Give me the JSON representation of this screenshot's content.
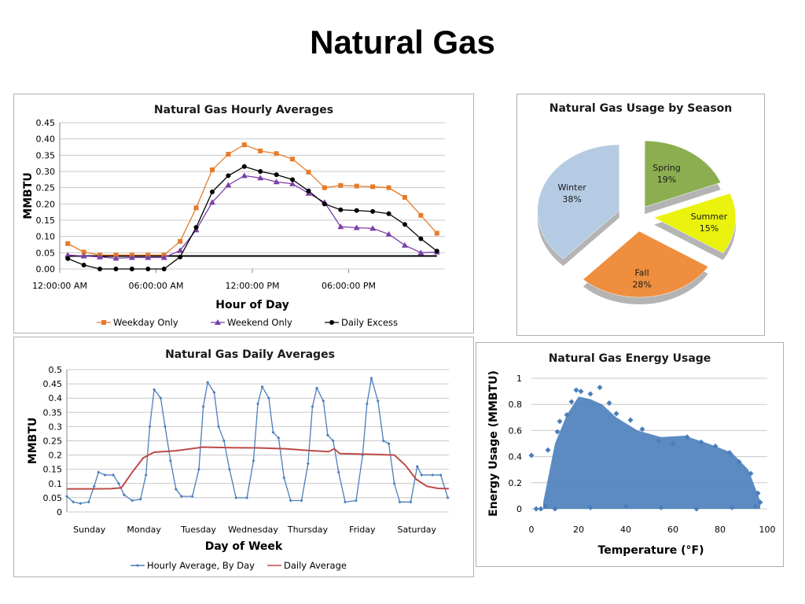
{
  "page": {
    "title": "Natural Gas"
  },
  "colors": {
    "weekday": "#E57C2A",
    "weekend": "#7B3FA8",
    "excess": "#000000",
    "hourly_by_day": "#4A7EBB",
    "daily_avg": "#BE4B48",
    "scatter": "#4A7EBB",
    "grid": "#c8c8c8"
  },
  "chart_data": [
    {
      "type": "line",
      "title": "Natural Gas Hourly Averages",
      "xlabel": "Hour of Day",
      "ylabel": "MMBTU",
      "ylim": [
        0,
        0.45
      ],
      "yticks": [
        "0.00",
        "0.05",
        "0.10",
        "0.15",
        "0.20",
        "0.25",
        "0.30",
        "0.35",
        "0.40",
        "0.45"
      ],
      "xticks": [
        "12:00:00 AM",
        "06:00:00 AM",
        "12:00:00 PM",
        "06:00:00 PM"
      ],
      "x_hours": [
        0,
        1,
        2,
        3,
        4,
        5,
        6,
        7,
        8,
        9,
        10,
        11,
        12,
        13,
        14,
        15,
        16,
        17,
        18,
        19,
        20,
        21,
        22,
        23
      ],
      "reference_line": 0.04,
      "legend_position": "bottom",
      "grid": true,
      "series": [
        {
          "name": "Weekday Only",
          "color_key": "weekday",
          "marker": "square",
          "values": [
            0.078,
            0.052,
            0.043,
            0.043,
            0.043,
            0.043,
            0.043,
            0.085,
            0.188,
            0.305,
            0.353,
            0.382,
            0.363,
            0.355,
            0.338,
            0.298,
            0.25,
            0.257,
            0.255,
            0.253,
            0.25,
            0.22,
            0.165,
            0.11
          ]
        },
        {
          "name": "Weekend Only",
          "color_key": "weekend",
          "marker": "triangle",
          "values": [
            0.043,
            0.04,
            0.037,
            0.033,
            0.035,
            0.035,
            0.035,
            0.057,
            0.12,
            0.205,
            0.258,
            0.287,
            0.28,
            0.268,
            0.262,
            0.233,
            0.205,
            0.13,
            0.127,
            0.125,
            0.107,
            0.073,
            0.05,
            0.052
          ]
        },
        {
          "name": "Daily Excess",
          "color_key": "excess",
          "marker": "circle",
          "values": [
            0.032,
            0.012,
            0.0,
            0.0,
            0.0,
            0.0,
            0.0,
            0.037,
            0.128,
            0.237,
            0.287,
            0.315,
            0.3,
            0.29,
            0.275,
            0.24,
            0.2,
            0.182,
            0.18,
            0.177,
            0.17,
            0.137,
            0.093,
            0.055
          ]
        }
      ]
    },
    {
      "type": "pie",
      "title": "Natural Gas Usage by Season",
      "slices": [
        {
          "label": "Spring",
          "value": 19,
          "pct_label": "19%",
          "color": "#8CAE50"
        },
        {
          "label": "Summer",
          "value": 15,
          "pct_label": "15%",
          "color": "#EAF20D"
        },
        {
          "label": "Fall",
          "value": 28,
          "pct_label": "28%",
          "color": "#EE8E3E"
        },
        {
          "label": "Winter",
          "value": 38,
          "pct_label": "38%",
          "color": "#B5CBE3"
        }
      ]
    },
    {
      "type": "line",
      "title": "Natural Gas Daily Averages",
      "xlabel": "Day of Week",
      "ylabel": "MMBTU",
      "ylim": [
        0,
        0.5
      ],
      "yticks": [
        "0",
        "0.05",
        "0.1",
        "0.15",
        "0.2",
        "0.25",
        "0.3",
        "0.35",
        "0.4",
        "0.45",
        "0.5"
      ],
      "categories": [
        "Sunday",
        "Monday",
        "Tuesday",
        "Wednesday",
        "Thursday",
        "Friday",
        "Saturday"
      ],
      "x_unit": "days since Sunday 12:00 AM",
      "legend_position": "bottom",
      "grid": true,
      "series": [
        {
          "name": "Hourly Average, By Day",
          "color_key": "hourly_by_day",
          "marker": "small-diamond",
          "points": [
            [
              0,
              0.055
            ],
            [
              0.12,
              0.035
            ],
            [
              0.25,
              0.03
            ],
            [
              0.4,
              0.035
            ],
            [
              0.5,
              0.09
            ],
            [
              0.58,
              0.14
            ],
            [
              0.7,
              0.13
            ],
            [
              0.85,
              0.13
            ],
            [
              0.95,
              0.1
            ],
            [
              1.05,
              0.06
            ],
            [
              1.2,
              0.04
            ],
            [
              1.35,
              0.045
            ],
            [
              1.45,
              0.13
            ],
            [
              1.52,
              0.3
            ],
            [
              1.6,
              0.43
            ],
            [
              1.72,
              0.4
            ],
            [
              1.8,
              0.3
            ],
            [
              1.9,
              0.18
            ],
            [
              2.0,
              0.08
            ],
            [
              2.1,
              0.055
            ],
            [
              2.3,
              0.055
            ],
            [
              2.42,
              0.15
            ],
            [
              2.5,
              0.37
            ],
            [
              2.58,
              0.455
            ],
            [
              2.7,
              0.42
            ],
            [
              2.78,
              0.3
            ],
            [
              2.88,
              0.25
            ],
            [
              2.98,
              0.15
            ],
            [
              3.1,
              0.05
            ],
            [
              3.3,
              0.05
            ],
            [
              3.42,
              0.18
            ],
            [
              3.5,
              0.38
            ],
            [
              3.58,
              0.44
            ],
            [
              3.7,
              0.4
            ],
            [
              3.78,
              0.28
            ],
            [
              3.88,
              0.26
            ],
            [
              3.98,
              0.12
            ],
            [
              4.1,
              0.04
            ],
            [
              4.3,
              0.04
            ],
            [
              4.42,
              0.17
            ],
            [
              4.5,
              0.37
            ],
            [
              4.58,
              0.435
            ],
            [
              4.7,
              0.39
            ],
            [
              4.78,
              0.27
            ],
            [
              4.88,
              0.25
            ],
            [
              4.98,
              0.14
            ],
            [
              5.1,
              0.035
            ],
            [
              5.3,
              0.04
            ],
            [
              5.42,
              0.2
            ],
            [
              5.5,
              0.38
            ],
            [
              5.58,
              0.47
            ],
            [
              5.7,
              0.39
            ],
            [
              5.8,
              0.25
            ],
            [
              5.9,
              0.24
            ],
            [
              6.0,
              0.1
            ],
            [
              6.1,
              0.035
            ],
            [
              6.3,
              0.035
            ],
            [
              6.42,
              0.16
            ],
            [
              6.5,
              0.13
            ],
            [
              6.7,
              0.13
            ],
            [
              6.85,
              0.13
            ],
            [
              6.98,
              0.05
            ]
          ]
        },
        {
          "name": "Daily Average",
          "color_key": "daily_avg",
          "marker": "none",
          "points": [
            [
              0,
              0.081
            ],
            [
              0.5,
              0.081
            ],
            [
              0.8,
              0.082
            ],
            [
              1.0,
              0.085
            ],
            [
              1.2,
              0.14
            ],
            [
              1.4,
              0.19
            ],
            [
              1.6,
              0.21
            ],
            [
              2.0,
              0.215
            ],
            [
              2.5,
              0.228
            ],
            [
              3.0,
              0.226
            ],
            [
              3.5,
              0.225
            ],
            [
              4.0,
              0.222
            ],
            [
              4.5,
              0.215
            ],
            [
              4.8,
              0.212
            ],
            [
              4.9,
              0.222
            ],
            [
              5.0,
              0.205
            ],
            [
              5.5,
              0.203
            ],
            [
              6.0,
              0.2
            ],
            [
              6.2,
              0.165
            ],
            [
              6.4,
              0.115
            ],
            [
              6.6,
              0.09
            ],
            [
              6.8,
              0.083
            ],
            [
              7.0,
              0.082
            ]
          ]
        }
      ]
    },
    {
      "type": "scatter",
      "title": "Natural Gas Energy Usage",
      "xlabel": "Temperature (°F)",
      "ylabel": "Energy Usage (MMBTU)",
      "xlim": [
        0,
        100
      ],
      "ylim": [
        0,
        1
      ],
      "xticks": [
        "0",
        "20",
        "40",
        "60",
        "80",
        "100"
      ],
      "yticks": [
        "0",
        "0.2",
        "0.4",
        "0.6",
        "0.8",
        "1"
      ],
      "marker": "diamond",
      "grid": true,
      "series": [
        {
          "name": "",
          "points": [
            [
              0,
              0.41
            ],
            [
              7,
              0.45
            ],
            [
              11,
              0.59
            ],
            [
              12,
              0.67
            ],
            [
              15,
              0.72
            ],
            [
              17,
              0.82
            ],
            [
              19,
              0.91
            ],
            [
              21,
              0.9
            ],
            [
              25,
              0.88
            ],
            [
              29,
              0.93
            ],
            [
              33,
              0.81
            ],
            [
              36,
              0.73
            ],
            [
              42,
              0.68
            ],
            [
              47,
              0.61
            ],
            [
              54,
              0.52
            ],
            [
              60,
              0.5
            ],
            [
              66,
              0.55
            ],
            [
              72,
              0.51
            ],
            [
              78,
              0.48
            ],
            [
              84,
              0.43
            ],
            [
              88,
              0.36
            ],
            [
              93,
              0.27
            ],
            [
              96,
              0.12
            ],
            [
              97,
              0.05
            ],
            [
              95,
              0.02
            ],
            [
              85,
              0.01
            ],
            [
              70,
              0.0
            ],
            [
              55,
              0.01
            ],
            [
              40,
              0.02
            ],
            [
              25,
              0.01
            ],
            [
              10,
              0.0
            ],
            [
              4,
              0.0
            ],
            [
              6,
              0.02
            ],
            [
              2,
              0.0
            ]
          ]
        }
      ]
    }
  ]
}
